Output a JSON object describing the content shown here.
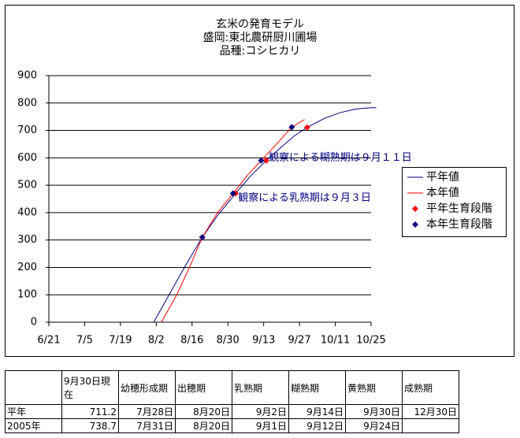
{
  "chart_data": {
    "type": "line",
    "title_lines": [
      "玄米の発育モデル",
      "盛岡:東北農研厨川圃場",
      "品種:コシヒカリ"
    ],
    "xlim": [
      172,
      298
    ],
    "ylim": [
      0,
      900
    ],
    "xticks": [
      {
        "value": 172,
        "label": "6/21"
      },
      {
        "value": 186,
        "label": "7/5"
      },
      {
        "value": 200,
        "label": "7/19"
      },
      {
        "value": 214,
        "label": "8/2"
      },
      {
        "value": 228,
        "label": "8/16"
      },
      {
        "value": 242,
        "label": "8/30"
      },
      {
        "value": 256,
        "label": "9/13"
      },
      {
        "value": 270,
        "label": "9/27"
      },
      {
        "value": 284,
        "label": "10/11"
      },
      {
        "value": 298,
        "label": "10/25"
      }
    ],
    "yticks": [
      0,
      100,
      200,
      300,
      400,
      500,
      600,
      700,
      800,
      900
    ],
    "grid": true,
    "legend": "right",
    "series": [
      {
        "name": "平年値",
        "color": "#000080",
        "mark": "line",
        "x": [
          213,
          219,
          225,
          232,
          238,
          245,
          251,
          257,
          263,
          268,
          273,
          280,
          286,
          292,
          298,
          300
        ],
        "values": [
          0,
          100,
          200,
          310,
          390,
          470,
          535,
          590,
          640,
          680,
          711,
          745,
          765,
          778,
          783,
          783
        ]
      },
      {
        "name": "本年値",
        "color": "#ff0000",
        "mark": "line",
        "x": [
          216,
          222,
          227,
          232,
          238,
          244,
          250,
          255,
          261,
          267,
          272
        ],
        "values": [
          0,
          100,
          200,
          310,
          400,
          470,
          540,
          590,
          650,
          712,
          740
        ]
      },
      {
        "name": "平年生育段階",
        "color": "#ff0000",
        "mark": "diamond",
        "x": [
          232,
          245,
          257,
          273
        ],
        "values": [
          310,
          470,
          590,
          711
        ]
      },
      {
        "name": "本年生育段階",
        "color": "#000080",
        "mark": "diamond",
        "x": [
          232,
          244,
          255,
          267
        ],
        "values": [
          310,
          470,
          590,
          712
        ]
      }
    ],
    "annotations": [
      {
        "text": "観察による糊熟期は９月１１日",
        "x": 258,
        "y": 600
      },
      {
        "text": "観察による乳熟期は９月３日",
        "x": 246,
        "y": 453
      }
    ]
  },
  "table": {
    "columns": [
      "9月30日現在",
      "幼穂形成期",
      "出穂期",
      "乳熟期",
      "糊熟期",
      "黄熟期",
      "成熟期"
    ],
    "rows": [
      {
        "label": "平年",
        "cells": [
          711.2,
          "7月28日",
          "8月20日",
          "9月2日",
          "9月14日",
          "9月30日",
          "12月30日"
        ]
      },
      {
        "label": "2005年",
        "cells": [
          738.7,
          "7月31日",
          "8月20日",
          "9月1日",
          "9月12日",
          "9月24日"
        ]
      }
    ]
  }
}
